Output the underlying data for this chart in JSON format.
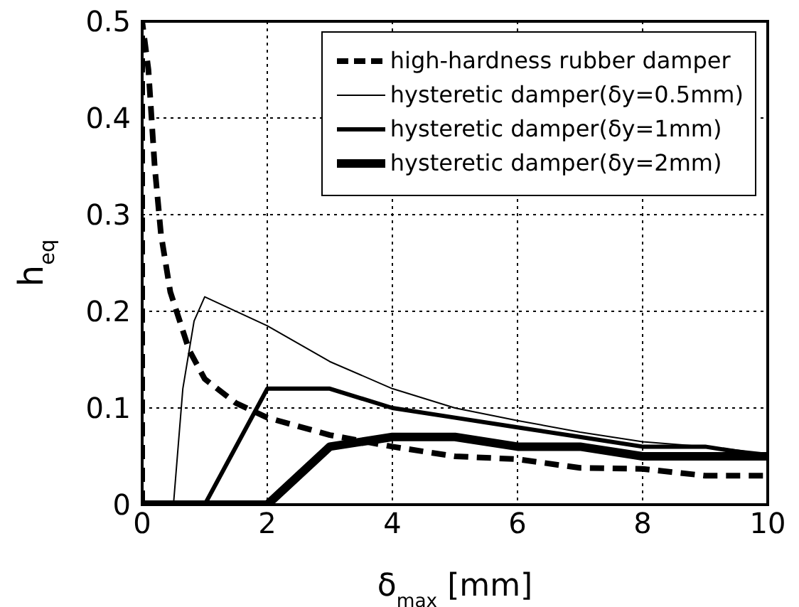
{
  "chart_data": {
    "type": "line",
    "xlabel": "δ$_{max}$ [mm]",
    "ylabel": "h$_{eq}$",
    "xlim": [
      0,
      10
    ],
    "xticks": [
      0,
      2,
      4,
      6,
      8,
      10
    ],
    "ylim": [
      0,
      0.5
    ],
    "yticks": [
      0,
      0.1,
      0.2,
      0.3,
      0.4,
      0.5
    ],
    "grid": true,
    "legend": "top right",
    "marker": "none",
    "series": [
      {
        "name": "high-hardness rubber damper",
        "color": "#000000",
        "line_style": "dashed",
        "x": [
          0,
          0,
          0.1,
          0.2,
          0.3,
          0.45,
          0.6,
          0.75,
          1,
          1.5,
          2,
          3,
          4,
          5,
          6,
          7,
          8,
          9,
          10
        ],
        "values": [
          0,
          0.5,
          0.45,
          0.35,
          0.28,
          0.22,
          0.19,
          0.16,
          0.13,
          0.105,
          0.09,
          0.072,
          0.06,
          0.05,
          0.047,
          0.038,
          0.037,
          0.03,
          0.03
        ]
      },
      {
        "name": "hysteretic damper(δy=0.5mm)",
        "color": "#000000",
        "line_style": "solid",
        "x": [
          0,
          0.5,
          0.65,
          0.83,
          1,
          2,
          3,
          4,
          5,
          6,
          7,
          8,
          9,
          10
        ],
        "values": [
          0,
          0,
          0.12,
          0.19,
          0.215,
          0.185,
          0.148,
          0.12,
          0.1,
          0.087,
          0.075,
          0.065,
          0.06,
          0.053
        ]
      },
      {
        "name": "hysteretic damper(δy=1mm)",
        "color": "#000000",
        "line_style": "solid",
        "x": [
          0,
          1,
          2,
          3,
          4,
          5,
          6,
          7,
          8,
          9,
          10
        ],
        "values": [
          0,
          0,
          0.12,
          0.12,
          0.1,
          0.09,
          0.08,
          0.07,
          0.06,
          0.06,
          0.05
        ]
      },
      {
        "name": "hysteretic damper(δy=2mm)",
        "color": "#000000",
        "line_style": "solid",
        "x": [
          0,
          2,
          3,
          4,
          5,
          6,
          7,
          8,
          9,
          10
        ],
        "values": [
          0,
          0,
          0.06,
          0.07,
          0.07,
          0.06,
          0.06,
          0.05,
          0.05,
          0.05
        ]
      }
    ]
  }
}
